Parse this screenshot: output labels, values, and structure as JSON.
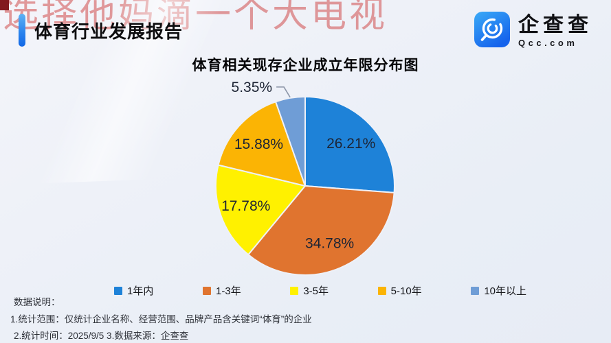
{
  "watermark": {
    "text": "选择他妈滴一个大电视",
    "color": "rgba(208,74,74,0.55)"
  },
  "header": {
    "title": "体育行业发展报告",
    "accent_color": "#1267E6"
  },
  "logo": {
    "brand": "企查查",
    "domain": "Qcc.com",
    "icon": "qcc-magnifier-icon",
    "icon_color": "#1E8BF2"
  },
  "chart_data": {
    "type": "pie",
    "title": "体育相关现存企业成立年限分布图",
    "categories": [
      "1年内",
      "1-3年",
      "3-5年",
      "5-10年",
      "10年以上"
    ],
    "values": [
      26.21,
      34.78,
      17.78,
      15.88,
      5.35
    ],
    "labels": [
      "26.21%",
      "34.78%",
      "17.78%",
      "15.88%",
      "5.35%"
    ],
    "colors": [
      "#1E82D8",
      "#E0742F",
      "#FFF100",
      "#FBB404",
      "#6F9DD6"
    ],
    "label_color": "#1D2434",
    "start_angle_deg": 0,
    "clockwise": true,
    "legend_position": "bottom",
    "outside_label_threshold_pct": 10
  },
  "footer": {
    "label": "数据说明：",
    "note1": "1.统计范围：仅统计企业名称、经营范围、品牌产品含关键词“体育”的企业",
    "note2": "2.统计时间：2025/9/5  3.数据来源：企查查"
  }
}
